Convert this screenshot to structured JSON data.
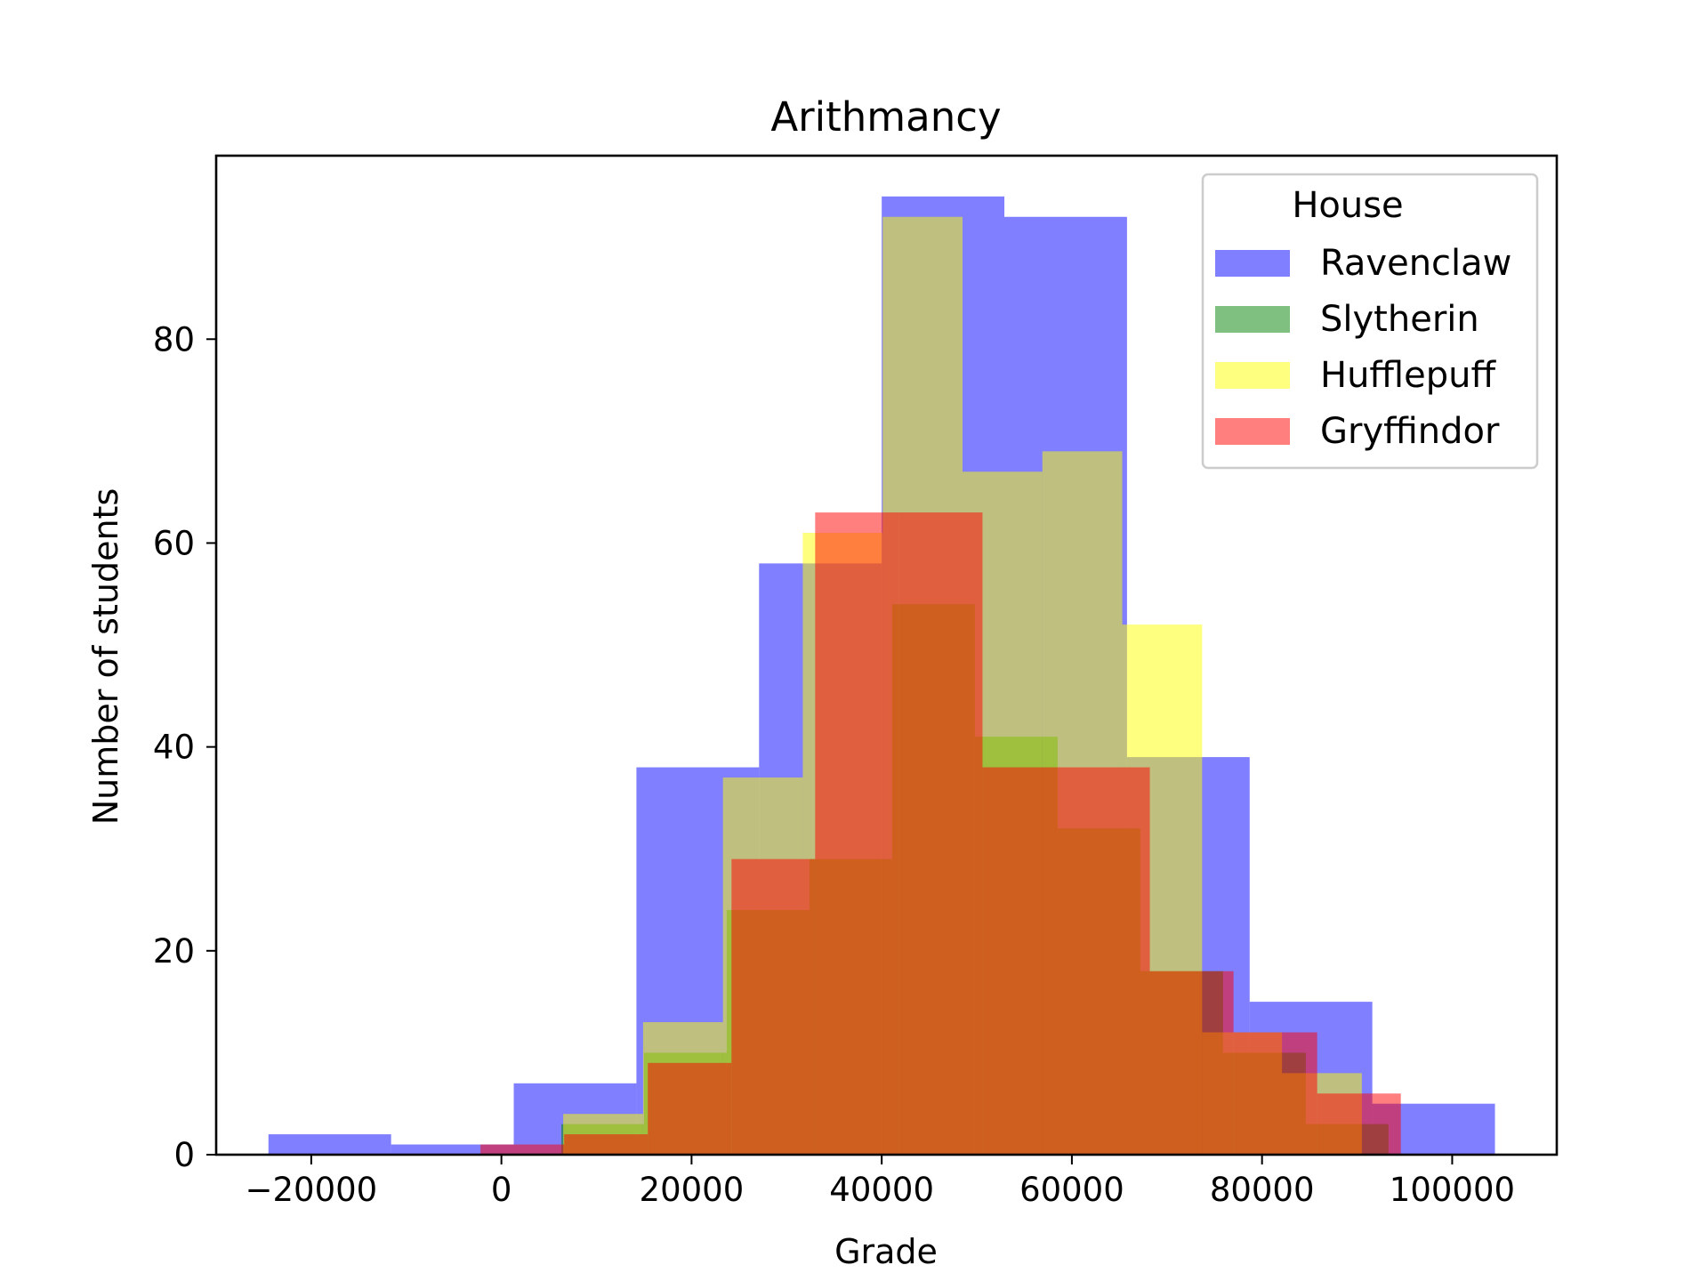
{
  "chart_data": {
    "type": "bar",
    "histogram": true,
    "title": "Arithmancy",
    "xlabel": "Grade",
    "ylabel": "Number of students",
    "xlim": [
      -30000,
      111000
    ],
    "ylim": [
      0,
      98
    ],
    "xticks": [
      -20000,
      0,
      20000,
      40000,
      60000,
      80000,
      100000
    ],
    "xtick_labels": [
      "−20000",
      "0",
      "20000",
      "40000",
      "60000",
      "80000",
      "100000"
    ],
    "yticks": [
      0,
      20,
      40,
      60,
      80
    ],
    "ytick_labels": [
      "0",
      "20",
      "40",
      "60",
      "80"
    ],
    "grid": false,
    "legend": {
      "title": "House",
      "placement": "upper right"
    },
    "series": [
      {
        "name": "Ravenclaw",
        "color": "#0000ff",
        "opacity": 0.5,
        "bin_edges": [
          -24500,
          -11600,
          1300,
          14200,
          27100,
          40000,
          52900,
          65800,
          78700,
          91600,
          104500
        ],
        "counts": [
          2,
          1,
          7,
          38,
          58,
          94,
          92,
          39,
          15,
          5
        ]
      },
      {
        "name": "Slytherin",
        "color": "#008000",
        "opacity": 0.5,
        "bin_edges": [
          6300,
          15000,
          23700,
          32400,
          41100,
          49800,
          58500,
          67200,
          75900,
          84600,
          93300
        ],
        "counts": [
          3,
          10,
          24,
          29,
          54,
          41,
          32,
          18,
          10,
          3
        ]
      },
      {
        "name": "Hufflepuff",
        "color": "#ffff00",
        "opacity": 0.5,
        "bin_edges": [
          6500,
          14900,
          23300,
          31700,
          40100,
          48500,
          56900,
          65300,
          73700,
          82100,
          90500
        ],
        "counts": [
          4,
          13,
          37,
          61,
          92,
          67,
          69,
          52,
          12,
          8
        ]
      },
      {
        "name": "Gryffindor",
        "color": "#ff0000",
        "opacity": 0.5,
        "bin_edges": [
          -2200,
          6600,
          15400,
          24200,
          33000,
          41800,
          50600,
          59400,
          68200,
          77000,
          85800,
          94600
        ],
        "counts": [
          1,
          2,
          9,
          29,
          63,
          63,
          38,
          38,
          18,
          12,
          6
        ]
      }
    ]
  }
}
